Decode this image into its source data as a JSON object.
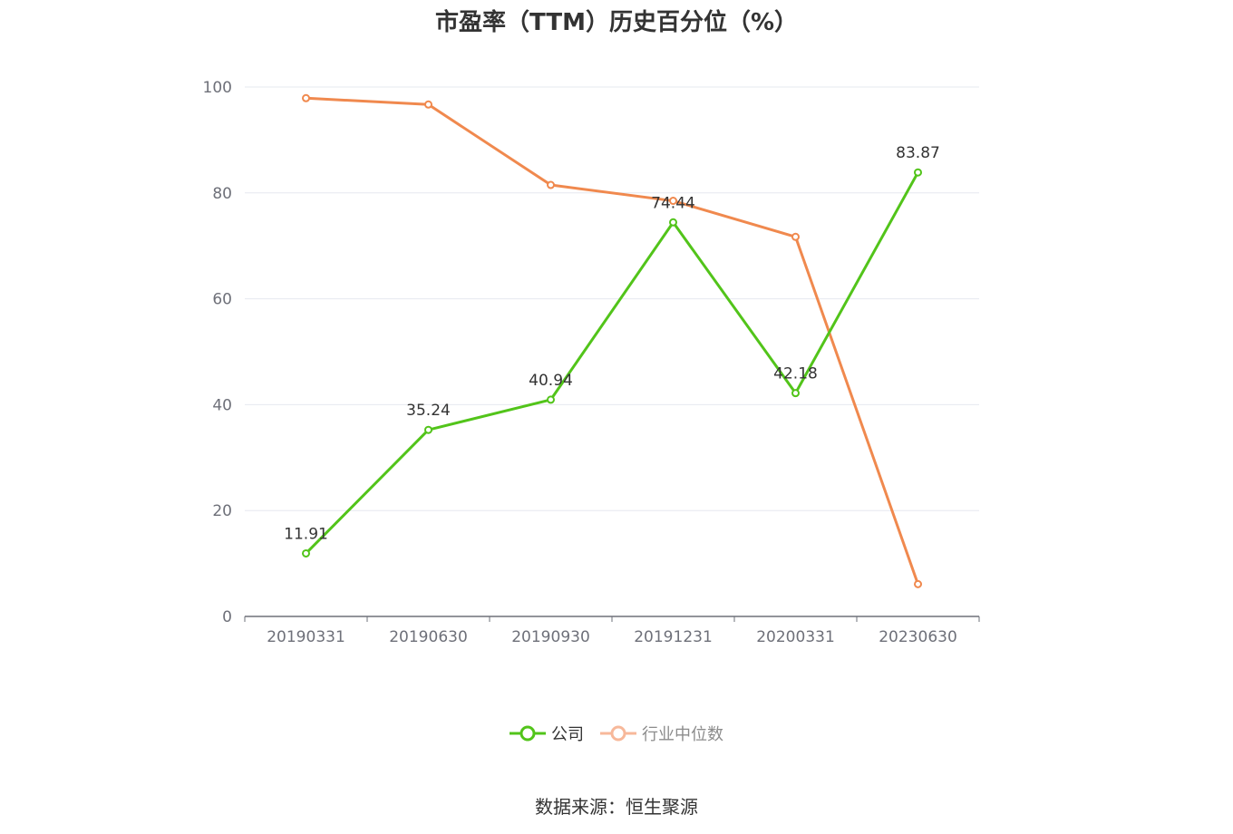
{
  "title": "市盈率（TTM）历史百分位（%）",
  "source": "数据来源：恒生聚源",
  "colors": {
    "company": "#52c41a",
    "industry": "#f0894e",
    "industry_legend": "#f7b89a",
    "grid": "#e6e8ef",
    "axis": "#6e7079"
  },
  "chart_data": {
    "type": "line",
    "categories": [
      "20190331",
      "20190630",
      "20190930",
      "20191231",
      "20200331",
      "20230630"
    ],
    "ylim": [
      0,
      100
    ],
    "yticks": [
      "0",
      "20",
      "40",
      "60",
      "80",
      "100"
    ],
    "grid": true,
    "legend_position": "bottom",
    "series": [
      {
        "name": "公司",
        "values": [
          11.91,
          35.24,
          40.94,
          74.44,
          42.18,
          83.87
        ],
        "labels": [
          "11.91",
          "35.24",
          "40.94",
          "74.44",
          "42.18",
          "83.87"
        ]
      },
      {
        "name": "行业中位数",
        "values": [
          97.9,
          96.7,
          81.5,
          78.5,
          71.7,
          6.1
        ]
      }
    ]
  }
}
